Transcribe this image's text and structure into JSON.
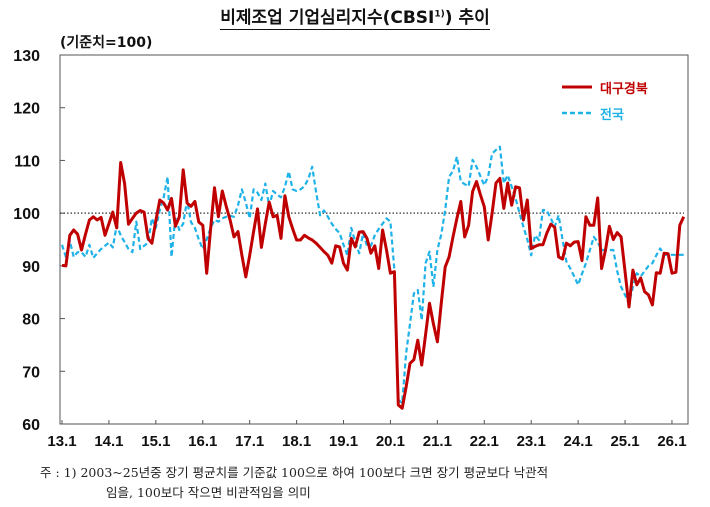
{
  "title": {
    "main": "비제조업 기업심리지수(CBSI",
    "sup": "1)",
    "end": ") 추이"
  },
  "unit_label": "(기준치=100)",
  "footnote": {
    "line1": "주 : 1) 2003~25년중 장기 평균치를 기준값 100으로 하여 100보다 크면 장기 평균보다 낙관적",
    "line2": "임을, 100보다 작으면 비관적임을 의미"
  },
  "chart_data": {
    "type": "line",
    "x_start": "2013-01",
    "frequency": "monthly",
    "ylim": [
      60,
      130
    ],
    "yticks": [
      60,
      70,
      80,
      90,
      100,
      110,
      120,
      130
    ],
    "xtick_labels": [
      "13.1",
      "14.1",
      "15.1",
      "16.1",
      "17.1",
      "18.1",
      "19.1",
      "20.1",
      "21.1",
      "22.1",
      "23.1",
      "24.1",
      "25.1",
      "26.1"
    ],
    "reference_line": 100,
    "grid": false,
    "legend_position": "top-right",
    "series": [
      {
        "name": "대구경북",
        "color": "#C00000",
        "style": "solid",
        "values": [
          90.1,
          90,
          95.8,
          96.8,
          96,
          93,
          96,
          98.7,
          99.3,
          98.7,
          99.2,
          95.8,
          98,
          100.2,
          97.2,
          109.6,
          105.6,
          97.9,
          99,
          100,
          100.5,
          100.2,
          95.2,
          94.3,
          98.5,
          102.5,
          101.9,
          100.6,
          102.8,
          97.5,
          99.3,
          108.2,
          101.9,
          101.3,
          102.2,
          98.3,
          97.7,
          88.6,
          97,
          104.8,
          99.3,
          104.2,
          101.3,
          98.7,
          95.5,
          96.5,
          92,
          87.9,
          92,
          96.5,
          100.8,
          93.5,
          98,
          102.1,
          99.3,
          99.6,
          95.2,
          103.3,
          99.3,
          97,
          94.9,
          94.9,
          95.8,
          95.3,
          94.9,
          94.3,
          93.5,
          92.7,
          92,
          90.5,
          93.8,
          93.6,
          90.5,
          89.2,
          95.2,
          93.6,
          96.4,
          96.5,
          95.2,
          92.4,
          93.8,
          89.5,
          96.8,
          93,
          88.6,
          88.9,
          63.6,
          63,
          67,
          71.5,
          72.2,
          75.9,
          71.2,
          77,
          82.9,
          79,
          75.6,
          83,
          89.8,
          91.7,
          95.5,
          99,
          102.2,
          95.5,
          97.7,
          104.1,
          106,
          103.5,
          101.2,
          94.9,
          100,
          105.7,
          106.6,
          100.9,
          105.7,
          101.5,
          105,
          104.8,
          98.7,
          102.5,
          93.3,
          93.7,
          94,
          94,
          96.2,
          97.9,
          97.3,
          91.7,
          91.3,
          94.3,
          93.8,
          94.5,
          94.6,
          91,
          99.3,
          97.7,
          97.7,
          102.9,
          89.5,
          93,
          97.5,
          95,
          96.3,
          95.5,
          89,
          82.2,
          89.2,
          86.4,
          87.7,
          85.1,
          84.5,
          82.6,
          88.7,
          88.6,
          92.4,
          92.3,
          88.6,
          88.8,
          97.7,
          99.3
        ]
      },
      {
        "name": "전국",
        "color": "#1EB2E8",
        "style": "dashed",
        "values": [
          94,
          91.7,
          94.7,
          91.7,
          92.6,
          92.6,
          91.7,
          94,
          91.5,
          92.4,
          93.2,
          93.8,
          94.4,
          93.5,
          97.7,
          95.8,
          94.5,
          93.2,
          92.6,
          98.4,
          93.2,
          93.8,
          94.4,
          99,
          97.2,
          100.6,
          103,
          106.9,
          91.7,
          99.3,
          96.8,
          98,
          102.5,
          98.3,
          97.2,
          95,
          93.2,
          95,
          97.2,
          98.7,
          98.4,
          99,
          99.3,
          99.5,
          99.3,
          101.5,
          104.5,
          102,
          99,
          104.5,
          103.9,
          102.5,
          105.6,
          101.3,
          104.2,
          103.5,
          103,
          105,
          107.9,
          104.5,
          104.2,
          104.5,
          105.1,
          106.5,
          108.8,
          104,
          99.6,
          100.5,
          99.3,
          98,
          97,
          96.2,
          94,
          92,
          97.2,
          94.5,
          92.4,
          96.2,
          93.8,
          93.8,
          95.8,
          97,
          98,
          99,
          98.4,
          89.2,
          64.6,
          64,
          73.4,
          79,
          84.8,
          85.4,
          79.7,
          90.5,
          92.7,
          86,
          93,
          96,
          100.6,
          106.9,
          108,
          110.7,
          106,
          105.5,
          105.1,
          110.1,
          108.8,
          107,
          105.3,
          107,
          111.3,
          112,
          112.6,
          105.7,
          107.2,
          105,
          102.8,
          100,
          97.4,
          95,
          92,
          95.8,
          94.9,
          100.6,
          100.5,
          99,
          97.4,
          99.6,
          95,
          90.8,
          89.5,
          88,
          86.4,
          88.5,
          90.5,
          93,
          95.5,
          94.5,
          93,
          93,
          93,
          93,
          89,
          86,
          84.5,
          82.9,
          86,
          88.6,
          88,
          89,
          90,
          90.5,
          92,
          93.3,
          92.1,
          92.1,
          92.1,
          92.1,
          92.1,
          92.1
        ]
      }
    ]
  }
}
